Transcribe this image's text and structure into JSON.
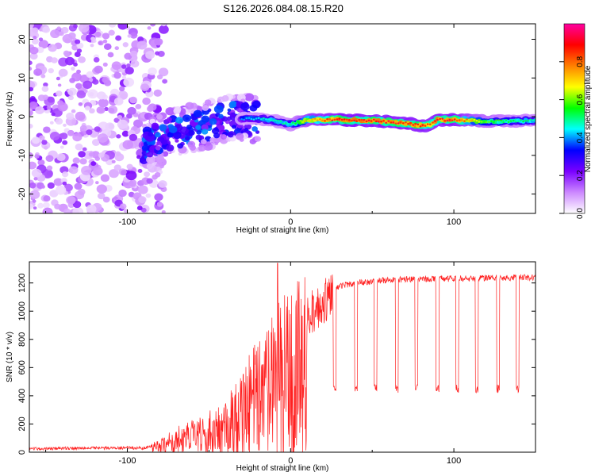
{
  "figure": {
    "title": "S126.2026.084.08.15.R20"
  },
  "chart_data": [
    {
      "type": "heatmap",
      "xlabel": "Height of straight line (km)",
      "ylabel": "Frequency (Hz)",
      "xlim": [
        -160,
        150
      ],
      "ylim": [
        -25,
        24
      ],
      "x_ticks": [
        -100,
        0,
        100
      ],
      "x_tick_labels": [
        "-100",
        "0",
        "100"
      ],
      "y_ticks": [
        -20,
        -10,
        0,
        10,
        20
      ],
      "y_tick_labels": [
        "-20",
        "-10",
        "0",
        "10",
        "20"
      ],
      "colorbar": {
        "label": "Normalized spectral amplitude",
        "range": [
          0.0,
          1.0
        ],
        "ticks": [
          0.0,
          0.2,
          0.4,
          0.6,
          0.8
        ],
        "tick_labels": [
          "0.0",
          "0.2",
          "0.4",
          "0.6",
          "0.8"
        ],
        "colormap": [
          "#ffffff",
          "#cc88ff",
          "#7a00ff",
          "#0000ff",
          "#00ffff",
          "#00ff00",
          "#ffff00",
          "#ff8000",
          "#ff0000",
          "#ff00a0"
        ]
      },
      "ridge": {
        "description": "frequency centre of the signal trace",
        "x": [
          -90,
          -80,
          -70,
          -60,
          -50,
          -40,
          -30,
          -20,
          -10,
          0,
          10,
          30,
          50,
          70,
          80,
          85,
          90,
          100,
          120,
          150
        ],
        "frequency": [
          -8,
          -5,
          -4,
          -3,
          -2,
          -1,
          -0.5,
          -0.5,
          -1,
          -2,
          -0.8,
          -0.8,
          -1,
          -1.7,
          -2.3,
          -2.2,
          -0.8,
          -0.8,
          -1.2,
          -1
        ],
        "amplitude": [
          0.25,
          0.3,
          0.3,
          0.3,
          0.3,
          0.3,
          0.4,
          0.45,
          0.5,
          0.5,
          0.75,
          0.92,
          0.9,
          0.9,
          0.9,
          0.85,
          0.9,
          0.92,
          0.6,
          0.5
        ]
      },
      "noise_region_x": [
        -160,
        -85
      ]
    },
    {
      "type": "line",
      "xlabel": "Height of straight line (km)",
      "ylabel": "SNR (10 * v/v)",
      "xlim": [
        -160,
        150
      ],
      "ylim": [
        0,
        1350
      ],
      "x_ticks": [
        -100,
        0,
        100
      ],
      "x_tick_labels": [
        "-100",
        "0",
        "100"
      ],
      "y_ticks": [
        0,
        200,
        400,
        600,
        800,
        1000,
        1200
      ],
      "y_tick_labels": [
        "0",
        "200",
        "400",
        "600",
        "800",
        "1000",
        "1200"
      ],
      "series": [
        {
          "name": "SNR",
          "color": "#ff2020",
          "envelope_x": [
            -160,
            -120,
            -90,
            -80,
            -70,
            -60,
            -50,
            -40,
            -30,
            -20,
            -10,
            0,
            10,
            20,
            30,
            40,
            50,
            60,
            80,
            100,
            120,
            150
          ],
          "envelope_y": [
            25,
            30,
            30,
            60,
            120,
            160,
            200,
            250,
            400,
            550,
            700,
            800,
            1000,
            1100,
            1180,
            1200,
            1210,
            1220,
            1230,
            1230,
            1235,
            1240
          ],
          "dropouts_x": [
            27,
            40,
            52,
            65,
            77,
            90,
            102,
            114,
            127,
            139
          ],
          "dropout_level": 450,
          "peak_x": -8,
          "peak_y": 1340
        }
      ]
    }
  ]
}
